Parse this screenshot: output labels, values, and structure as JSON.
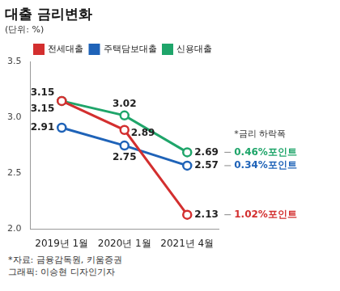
{
  "chart_data": {
    "type": "line",
    "title": "대출 금리변화",
    "subtitle": "(단위: %)",
    "categories": [
      "2019년 1월",
      "2020년 1월",
      "2021년 4월"
    ],
    "series": [
      {
        "name": "전세대출",
        "color": "#d32f2f",
        "values": [
          3.15,
          2.89,
          2.13
        ],
        "end_note": "1.02%포인트"
      },
      {
        "name": "주택담보대출",
        "color": "#1f63b8",
        "values": [
          2.91,
          2.75,
          2.57
        ],
        "end_note": "0.34%포인트"
      },
      {
        "name": "신용대출",
        "color": "#1fa56a",
        "values": [
          3.15,
          3.02,
          2.69
        ],
        "end_note": "0.46%포인트"
      }
    ],
    "note_title": "*금리 하락폭",
    "notes": [
      "*자료: 금융감독원, 키움증권",
      "그래픽: 이승현 디자인기자"
    ],
    "ylim": [
      2.0,
      3.5
    ],
    "yticks": [
      {
        "value": 2.0,
        "label": "2.0"
      },
      {
        "value": 2.5,
        "label": "2.5"
      },
      {
        "value": 3.0,
        "label": "3.0"
      },
      {
        "value": 3.5,
        "label": "3.5"
      }
    ],
    "grid": false,
    "legend": "top-right",
    "marker": "circle",
    "data_labels": true
  }
}
